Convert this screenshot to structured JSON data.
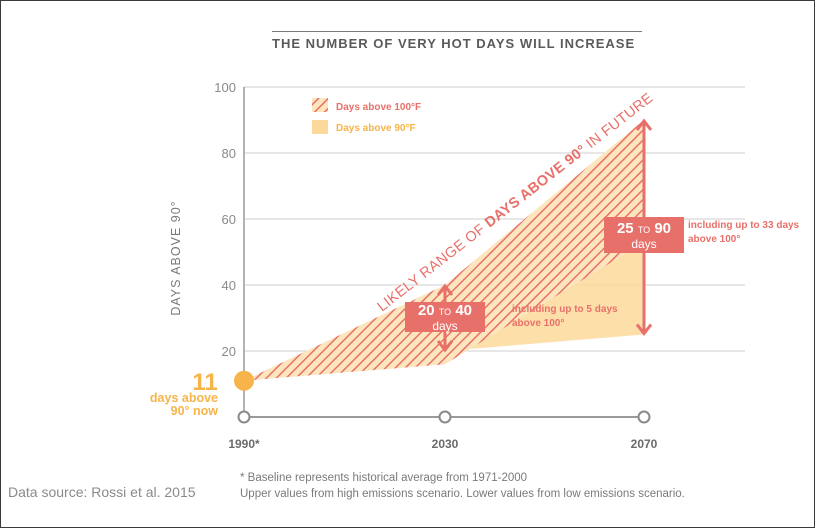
{
  "chart_data": {
    "type": "area",
    "title": "THE NUMBER OF VERY HOT DAYS WILL INCREASE",
    "ylabel": "DAYS ABOVE 90°",
    "ylim": [
      0,
      100
    ],
    "yticks": [
      "100",
      "80",
      "60",
      "40",
      "20"
    ],
    "x_ticks": [
      "1990*",
      "2030",
      "2070"
    ],
    "grid": true,
    "legend": [
      {
        "name": "Days above 100°F",
        "style": "hatched",
        "color": "#e8706a"
      },
      {
        "name": "Days above 90°F",
        "style": "filled",
        "color": "#fcd99a"
      }
    ],
    "series": [
      {
        "name": "Days above 90°F",
        "x": [
          "1990*",
          "2030",
          "2070"
        ],
        "upper": [
          11,
          40,
          90
        ],
        "lower": [
          11,
          20,
          25
        ]
      },
      {
        "name": "Days above 100°F",
        "x": [
          "1990*",
          "2030",
          "2070"
        ],
        "upper": [
          11,
          40,
          90
        ],
        "lower": [
          11,
          16,
          53
        ]
      }
    ],
    "baseline": {
      "value": 11,
      "label_value": "11",
      "label_line1": "days above",
      "label_line2": "90° now"
    },
    "range_label_prefix": "LIKELY RANGE OF",
    "range_label_bold": "DAYS ABOVE 90°",
    "range_label_suffix": "IN FUTURE",
    "annotations": [
      {
        "low": "20",
        "to": "TO",
        "high": "40",
        "unit": "days",
        "note_line1": "including up to 5 days",
        "note_line2": "above 100°"
      },
      {
        "low": "25",
        "to": "TO",
        "high": "90",
        "unit": "days",
        "note_line1": "including up to 33 days",
        "note_line2": "above 100°"
      }
    ]
  },
  "footnote_line1": "* Baseline represents historical average from 1971-2000",
  "footnote_line2": "Upper values from high emissions scenario. Lower values from low emissions scenario.",
  "source": "Data source: Rossi et al. 2015",
  "colors": {
    "red": "#e8706a",
    "orange": "#f6b44a",
    "light_orange": "#fcd99a",
    "axis": "#6e6e6e",
    "grid": "#cfcfcf"
  }
}
